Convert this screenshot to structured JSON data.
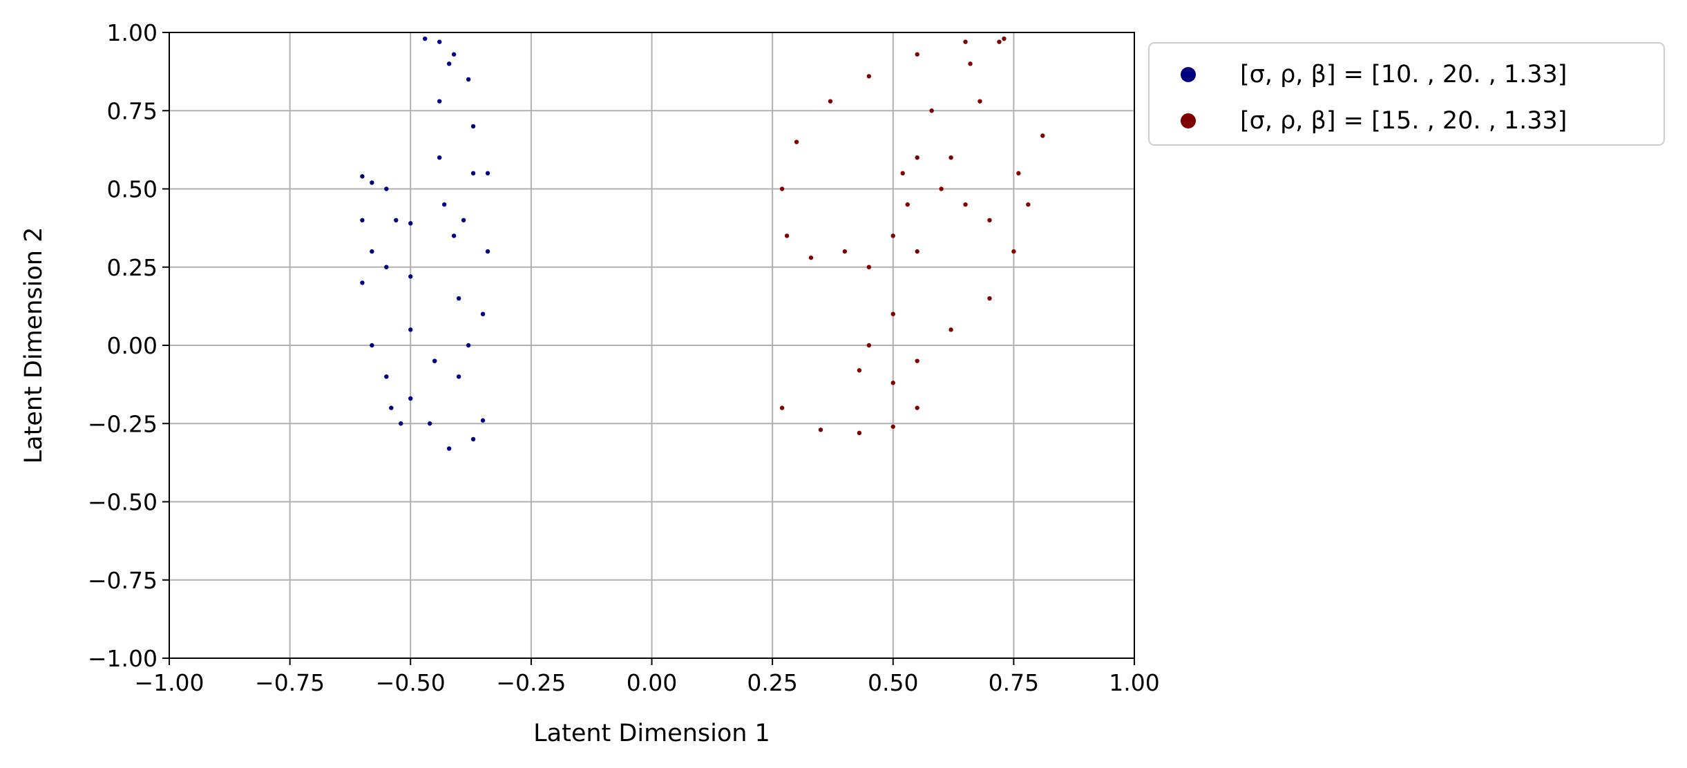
{
  "chart_data": {
    "type": "scatter",
    "title": "",
    "xlabel": "Latent Dimension 1",
    "ylabel": "Latent Dimension 2",
    "xlim": [
      -1.0,
      1.0
    ],
    "ylim": [
      -1.0,
      1.0
    ],
    "x_ticks": [
      "−1.00",
      "−0.75",
      "−0.50",
      "−0.25",
      "0.00",
      "0.25",
      "0.50",
      "0.75",
      "1.00"
    ],
    "y_ticks": [
      "1.00",
      "0.75",
      "0.50",
      "0.25",
      "0.00",
      "−0.25",
      "−0.50",
      "−0.75",
      "−1.00"
    ],
    "grid": true,
    "legend_position": "outside-top-right",
    "series": [
      {
        "name": "[σ, ρ, β] = [10.  , 20.  ,  1.33]",
        "color": "#000080",
        "shape": "lorenz-attractor projection",
        "x_range": [
          -0.6,
          -0.34
        ],
        "y_range": [
          -0.33,
          0.98
        ],
        "points": [
          [
            -0.47,
            0.98
          ],
          [
            -0.44,
            0.97
          ],
          [
            -0.41,
            0.93
          ],
          [
            -0.38,
            0.85
          ],
          [
            -0.37,
            0.7
          ],
          [
            -0.37,
            0.55
          ],
          [
            -0.39,
            0.4
          ],
          [
            -0.41,
            0.35
          ],
          [
            -0.43,
            0.45
          ],
          [
            -0.44,
            0.6
          ],
          [
            -0.44,
            0.78
          ],
          [
            -0.42,
            0.9
          ],
          [
            -0.34,
            0.55
          ],
          [
            -0.34,
            0.3
          ],
          [
            -0.35,
            0.1
          ],
          [
            -0.38,
            0.0
          ],
          [
            -0.45,
            -0.05
          ],
          [
            -0.6,
            0.4
          ],
          [
            -0.6,
            0.2
          ],
          [
            -0.58,
            0.0
          ],
          [
            -0.55,
            -0.1
          ],
          [
            -0.5,
            -0.17
          ],
          [
            -0.45,
            -0.05
          ],
          [
            -0.5,
            0.22
          ],
          [
            -0.55,
            0.25
          ],
          [
            -0.58,
            0.3
          ],
          [
            -0.6,
            0.54
          ],
          [
            -0.58,
            0.52
          ],
          [
            -0.55,
            0.5
          ],
          [
            -0.53,
            0.4
          ],
          [
            -0.5,
            0.39
          ],
          [
            -0.46,
            -0.25
          ],
          [
            -0.42,
            -0.33
          ],
          [
            -0.37,
            -0.3
          ],
          [
            -0.35,
            -0.24
          ],
          [
            -0.4,
            0.15
          ],
          [
            -0.4,
            -0.1
          ],
          [
            -0.52,
            -0.25
          ],
          [
            -0.54,
            -0.2
          ],
          [
            -0.5,
            0.05
          ]
        ]
      },
      {
        "name": "[σ, ρ, β] = [15.  , 20.  ,  1.33]",
        "color": "#800000",
        "shape": "lorenz-attractor projection",
        "x_range": [
          0.27,
          0.81
        ],
        "y_range": [
          -0.28,
          0.98
        ],
        "points": [
          [
            0.73,
            0.98
          ],
          [
            0.65,
            0.97
          ],
          [
            0.55,
            0.93
          ],
          [
            0.45,
            0.86
          ],
          [
            0.37,
            0.78
          ],
          [
            0.3,
            0.65
          ],
          [
            0.27,
            0.5
          ],
          [
            0.28,
            0.35
          ],
          [
            0.33,
            0.28
          ],
          [
            0.45,
            0.25
          ],
          [
            0.5,
            0.35
          ],
          [
            0.53,
            0.45
          ],
          [
            0.55,
            0.6
          ],
          [
            0.58,
            0.75
          ],
          [
            0.66,
            0.9
          ],
          [
            0.72,
            0.97
          ],
          [
            0.6,
            0.5
          ],
          [
            0.55,
            0.3
          ],
          [
            0.5,
            0.1
          ],
          [
            0.45,
            0.0
          ],
          [
            0.43,
            -0.08
          ],
          [
            0.5,
            -0.12
          ],
          [
            0.55,
            -0.05
          ],
          [
            0.62,
            0.05
          ],
          [
            0.7,
            0.15
          ],
          [
            0.75,
            0.3
          ],
          [
            0.78,
            0.45
          ],
          [
            0.81,
            0.67
          ],
          [
            0.76,
            0.55
          ],
          [
            0.7,
            0.4
          ],
          [
            0.65,
            0.45
          ],
          [
            0.62,
            0.6
          ],
          [
            0.27,
            -0.2
          ],
          [
            0.35,
            -0.27
          ],
          [
            0.43,
            -0.28
          ],
          [
            0.5,
            -0.26
          ],
          [
            0.55,
            -0.2
          ],
          [
            0.4,
            0.3
          ],
          [
            0.52,
            0.55
          ],
          [
            0.68,
            0.78
          ]
        ]
      }
    ]
  }
}
